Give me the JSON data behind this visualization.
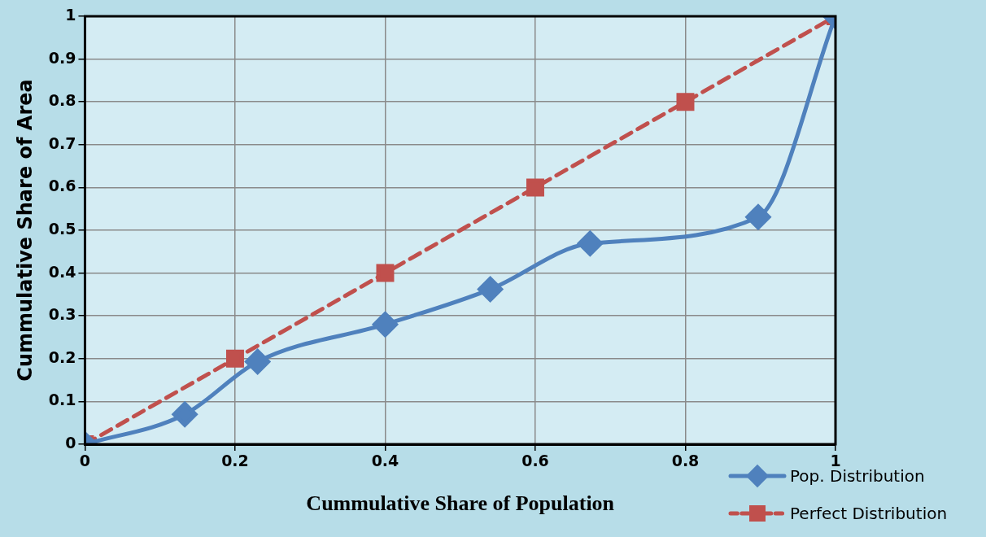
{
  "chart_data": {
    "type": "line",
    "xlabel": "Cummulative Share of Population",
    "ylabel": "Cummulative Share of Area",
    "xlim": [
      0,
      1
    ],
    "xticks": [
      0,
      0.2,
      0.4,
      0.6,
      0.8,
      1
    ],
    "ylim": [
      0,
      1
    ],
    "yticks": [
      0,
      0.1,
      0.2,
      0.3,
      0.4,
      0.5,
      0.6,
      0.7,
      0.8,
      0.9,
      1
    ],
    "grid": true,
    "legend": "bottom right",
    "series": [
      {
        "name": "Pop. Distribution",
        "color": "#4f81bd",
        "marker": "diamond",
        "line_style": "solid",
        "x": [
          0,
          0.133,
          0.23,
          0.4,
          0.54,
          0.673,
          0.897,
          1
        ],
        "values": [
          0,
          0.07,
          0.193,
          0.28,
          0.362,
          0.469,
          0.531,
          1
        ]
      },
      {
        "name": "Perfect Distribution",
        "color": "#c0504d",
        "marker": "square",
        "line_style": "dashed",
        "x": [
          0,
          0.2,
          0.4,
          0.6,
          0.8,
          1
        ],
        "values": [
          0,
          0.2,
          0.4,
          0.6,
          0.8,
          1
        ]
      }
    ]
  }
}
